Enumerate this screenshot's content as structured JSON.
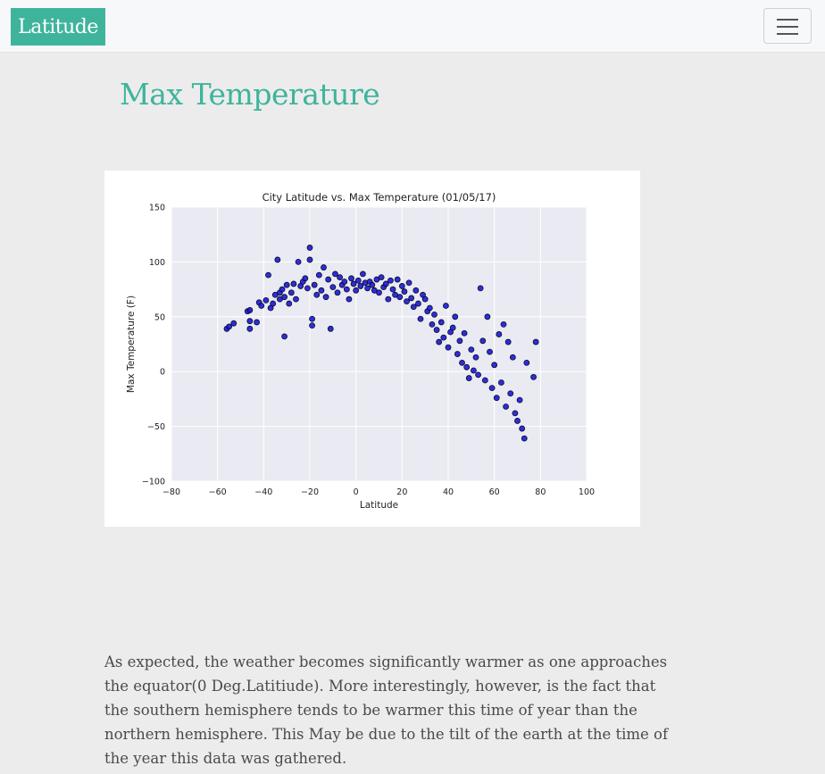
{
  "navbar": {
    "brand": "Latitude",
    "menu_icon": "hamburger-menu-icon"
  },
  "page": {
    "title": "Max Temperature",
    "description": "As expected, the weather becomes significantly warmer as one approaches the equator(0 Deg.Latitiude). More interestingly, however, is the fact that the southern hemisphere tends to be warmer this time of year than the northern hemisphere. This May be due to the tilt of the earth at the time of the year this data was gathered."
  },
  "colors": {
    "accent": "#3fb49d",
    "plot_background": "#eaeaf2",
    "marker_fill": "#1a1ad6",
    "marker_edge": "#0a0a2a"
  },
  "chart_data": {
    "type": "scatter",
    "title": "City Latitude vs. Max Temperature (01/05/17)",
    "xlabel": "Latitude",
    "ylabel": "Max Temperature (F)",
    "xlim": [
      -80,
      100
    ],
    "ylim": [
      -100,
      150
    ],
    "xticks": [
      -80,
      -60,
      -40,
      -20,
      0,
      20,
      40,
      60,
      80,
      100
    ],
    "yticks": [
      -100,
      -50,
      0,
      50,
      100,
      150
    ],
    "xtick_labels": [
      "−80",
      "−60",
      "−40",
      "−20",
      "0",
      "20",
      "40",
      "60",
      "80",
      "100"
    ],
    "ytick_labels": [
      "−100",
      "−50",
      "0",
      "50",
      "100",
      "150"
    ],
    "grid": true,
    "points": [
      [
        -56,
        39
      ],
      [
        -55,
        41
      ],
      [
        -53,
        44
      ],
      [
        -47,
        55
      ],
      [
        -46,
        56
      ],
      [
        -46,
        46
      ],
      [
        -46,
        39
      ],
      [
        -43,
        45
      ],
      [
        -42,
        63
      ],
      [
        -41,
        60
      ],
      [
        -39,
        65
      ],
      [
        -38,
        88
      ],
      [
        -37,
        58
      ],
      [
        -36,
        62
      ],
      [
        -35,
        70
      ],
      [
        -34,
        102
      ],
      [
        -33,
        66
      ],
      [
        -33,
        72
      ],
      [
        -32,
        75
      ],
      [
        -31,
        68
      ],
      [
        -31,
        32
      ],
      [
        -30,
        79
      ],
      [
        -29,
        62
      ],
      [
        -28,
        72
      ],
      [
        -27,
        80
      ],
      [
        -26,
        66
      ],
      [
        -25,
        100
      ],
      [
        -24,
        78
      ],
      [
        -23,
        82
      ],
      [
        -22,
        85
      ],
      [
        -21,
        76
      ],
      [
        -20,
        113
      ],
      [
        -20,
        102
      ],
      [
        -19,
        48
      ],
      [
        -19,
        42
      ],
      [
        -18,
        79
      ],
      [
        -17,
        70
      ],
      [
        -16,
        88
      ],
      [
        -15,
        74
      ],
      [
        -14,
        95
      ],
      [
        -13,
        68
      ],
      [
        -12,
        84
      ],
      [
        -11,
        39
      ],
      [
        -10,
        77
      ],
      [
        -9,
        89
      ],
      [
        -8,
        72
      ],
      [
        -7,
        86
      ],
      [
        -6,
        79
      ],
      [
        -5,
        82
      ],
      [
        -4,
        75
      ],
      [
        -3,
        66
      ],
      [
        -2,
        85
      ],
      [
        -1,
        80
      ],
      [
        0,
        74
      ],
      [
        1,
        83
      ],
      [
        2,
        78
      ],
      [
        3,
        89
      ],
      [
        4,
        81
      ],
      [
        5,
        76
      ],
      [
        6,
        82
      ],
      [
        7,
        79
      ],
      [
        8,
        74
      ],
      [
        9,
        84
      ],
      [
        10,
        72
      ],
      [
        11,
        86
      ],
      [
        12,
        77
      ],
      [
        13,
        80
      ],
      [
        14,
        66
      ],
      [
        15,
        83
      ],
      [
        16,
        75
      ],
      [
        17,
        70
      ],
      [
        18,
        84
      ],
      [
        19,
        68
      ],
      [
        20,
        78
      ],
      [
        21,
        73
      ],
      [
        22,
        64
      ],
      [
        23,
        81
      ],
      [
        24,
        67
      ],
      [
        25,
        59
      ],
      [
        26,
        74
      ],
      [
        27,
        62
      ],
      [
        28,
        48
      ],
      [
        29,
        70
      ],
      [
        30,
        66
      ],
      [
        31,
        55
      ],
      [
        32,
        58
      ],
      [
        33,
        43
      ],
      [
        34,
        52
      ],
      [
        35,
        38
      ],
      [
        36,
        27
      ],
      [
        37,
        45
      ],
      [
        38,
        31
      ],
      [
        39,
        60
      ],
      [
        40,
        22
      ],
      [
        41,
        36
      ],
      [
        42,
        40
      ],
      [
        43,
        50
      ],
      [
        44,
        16
      ],
      [
        45,
        28
      ],
      [
        46,
        8
      ],
      [
        47,
        35
      ],
      [
        48,
        4
      ],
      [
        49,
        -6
      ],
      [
        50,
        20
      ],
      [
        51,
        1
      ],
      [
        52,
        13
      ],
      [
        53,
        -3
      ],
      [
        54,
        76
      ],
      [
        55,
        28
      ],
      [
        56,
        -8
      ],
      [
        57,
        50
      ],
      [
        58,
        18
      ],
      [
        59,
        -15
      ],
      [
        60,
        6
      ],
      [
        61,
        -24
      ],
      [
        62,
        34
      ],
      [
        63,
        -10
      ],
      [
        64,
        43
      ],
      [
        65,
        -32
      ],
      [
        66,
        27
      ],
      [
        67,
        -20
      ],
      [
        68,
        13
      ],
      [
        69,
        -38
      ],
      [
        70,
        -45
      ],
      [
        71,
        -26
      ],
      [
        72,
        -52
      ],
      [
        73,
        -61
      ],
      [
        74,
        8
      ],
      [
        77,
        -5
      ],
      [
        78,
        27
      ]
    ]
  }
}
